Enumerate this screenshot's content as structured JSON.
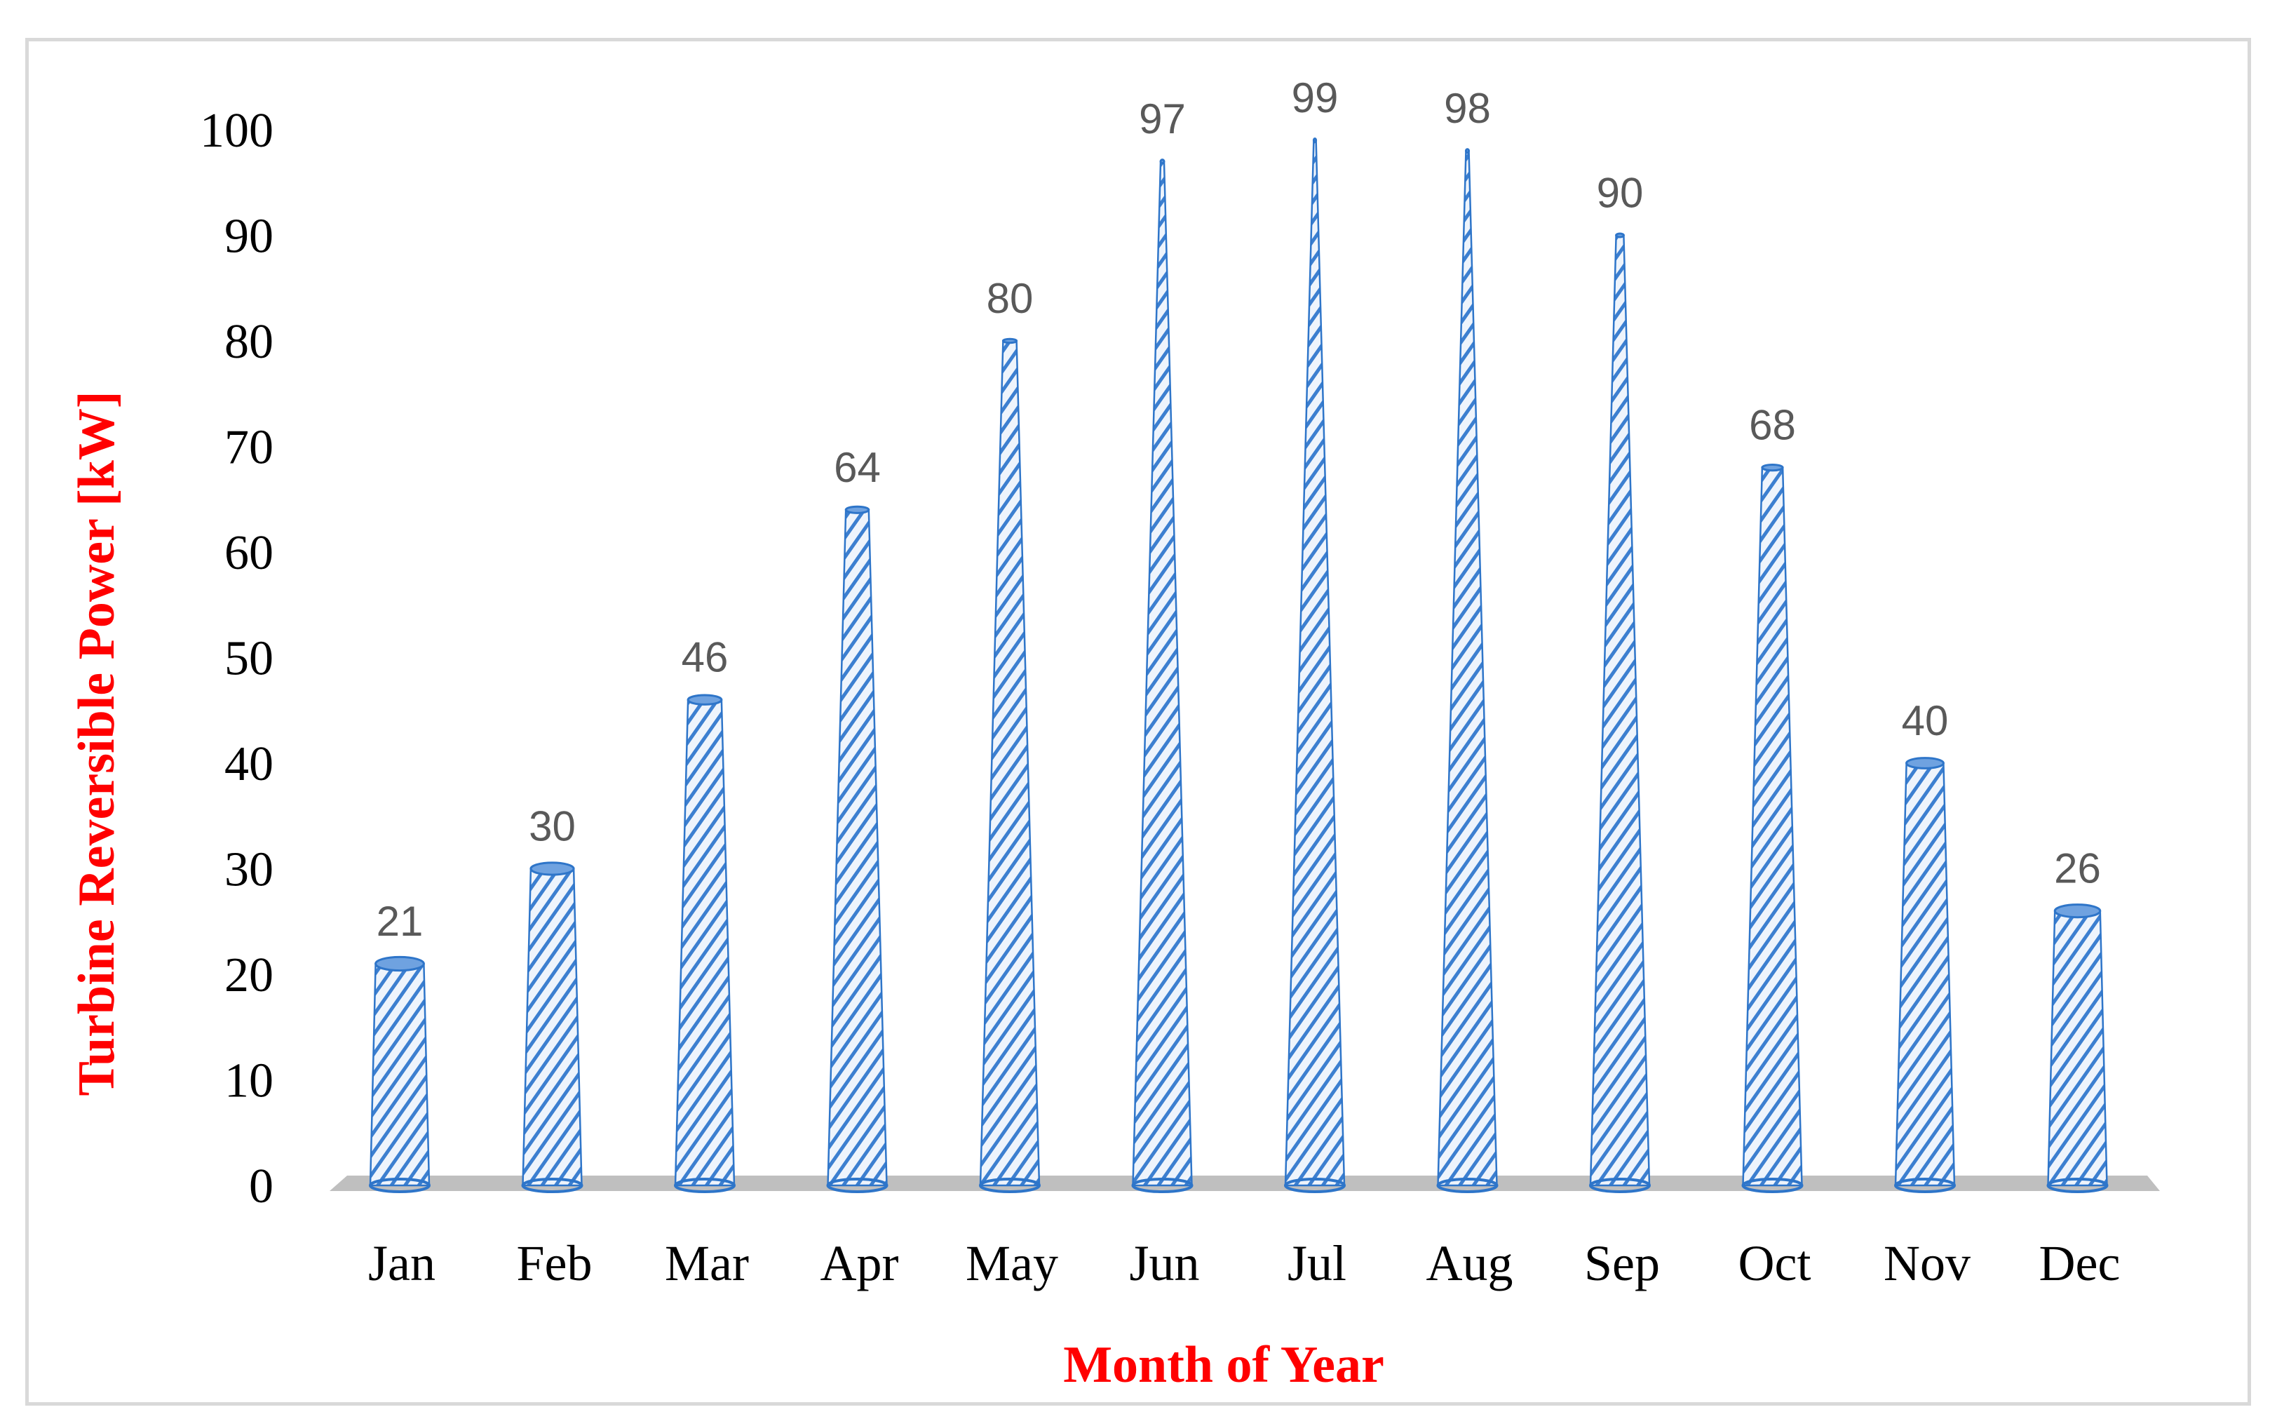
{
  "chart_data": {
    "type": "bar",
    "style": "3d-cone",
    "title": "",
    "xlabel": "Month of Year",
    "ylabel": "Turbine Reversible Power  [kW]",
    "categories": [
      "Jan",
      "Feb",
      "Mar",
      "Apr",
      "May",
      "Jun",
      "Jul",
      "Aug",
      "Sep",
      "Oct",
      "Nov",
      "Dec"
    ],
    "values": [
      21,
      30,
      46,
      64,
      80,
      97,
      99,
      98,
      90,
      68,
      40,
      26
    ],
    "ylim": [
      0,
      100
    ],
    "yticks": [
      0,
      10,
      20,
      30,
      40,
      50,
      60,
      70,
      80,
      90,
      100
    ],
    "grid": false,
    "legend": "none",
    "colors": {
      "fill": "#eaf2fb",
      "stripe": "#3c7fd0",
      "edge": "#2e75c9",
      "floor": "#bfbfbf",
      "axis_title": "#ff0000",
      "data_label": "#595959"
    }
  }
}
